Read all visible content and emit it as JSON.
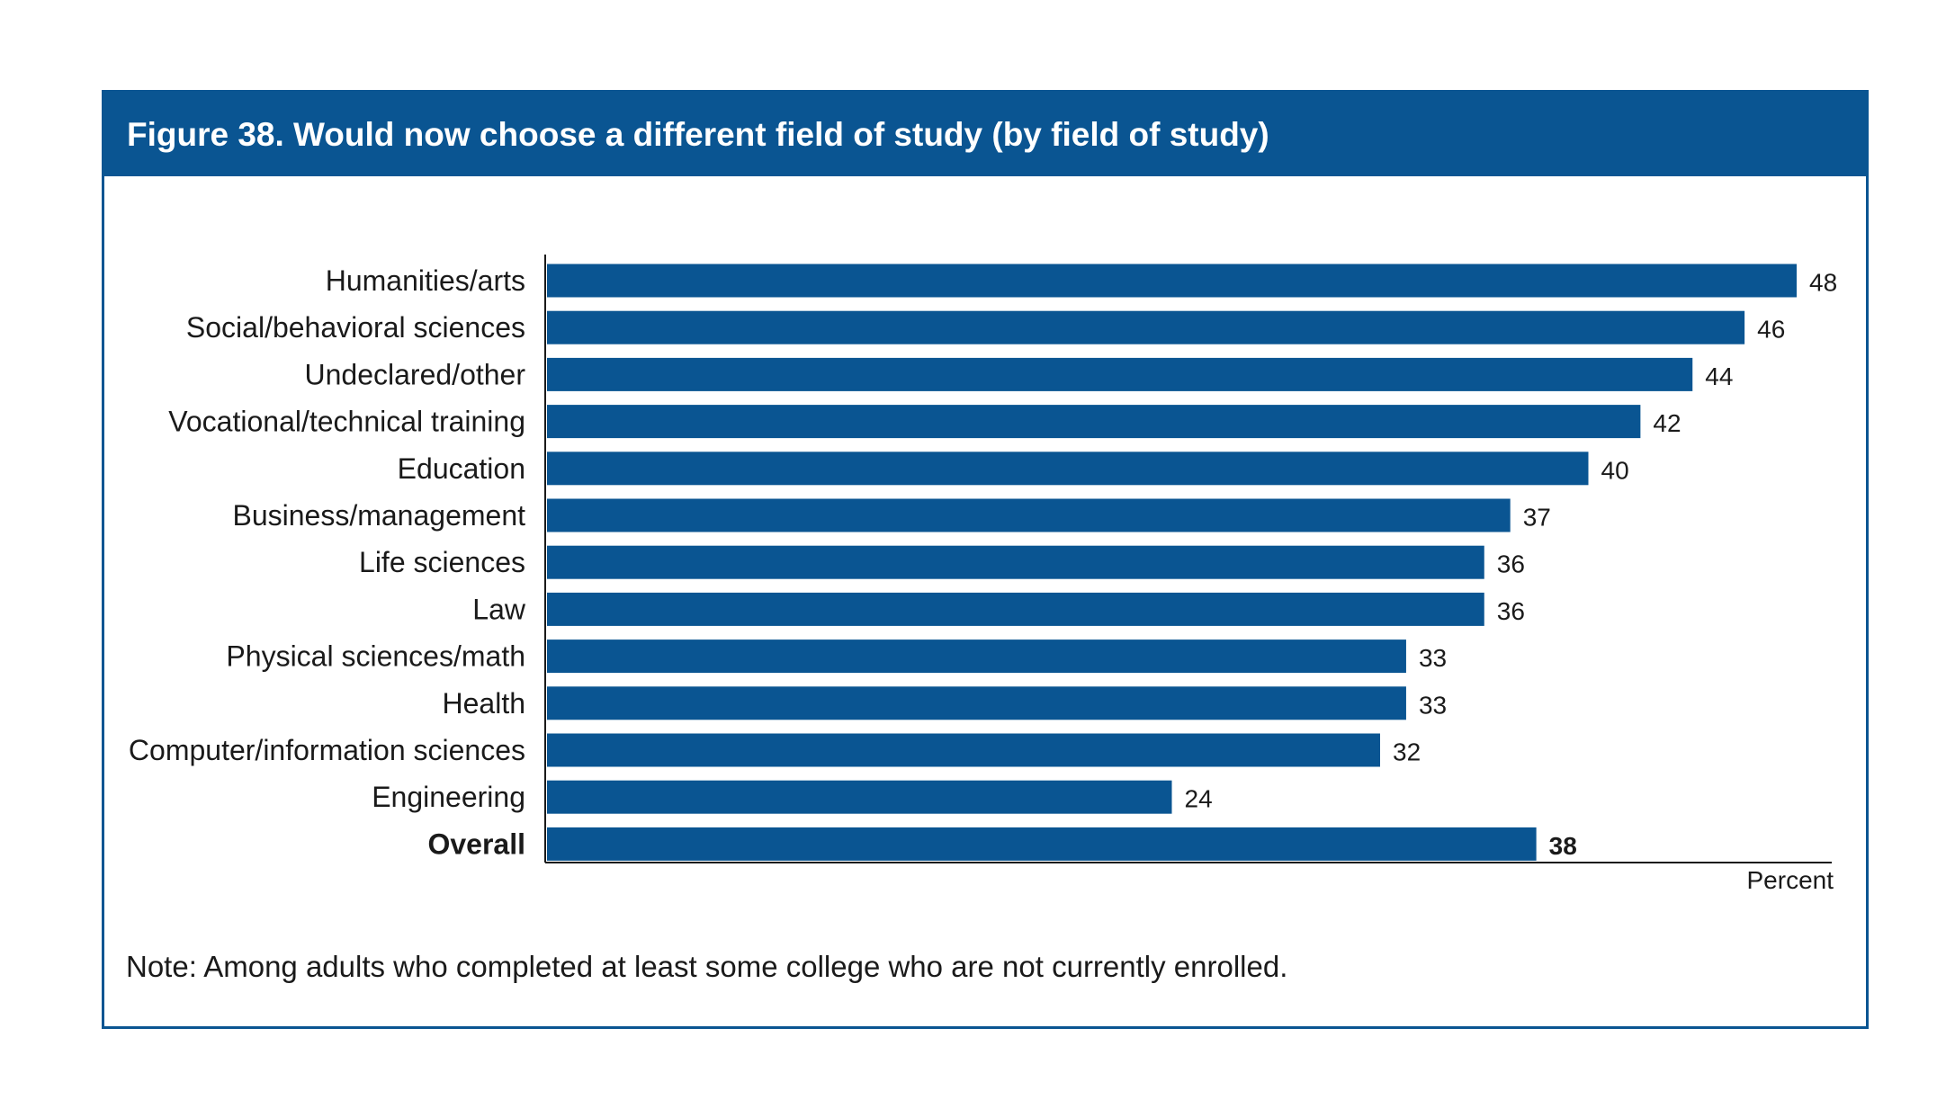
{
  "figure": {
    "title": "Figure 38. Would now choose a different field of study (by field of study)",
    "note": "Note: Among adults who completed at least some college who are not currently enrolled.",
    "axis_unit": "Percent"
  },
  "colors": {
    "brand": "#0a5592",
    "bar": "#0a5592",
    "text": "#1a1a1a"
  },
  "chart_data": {
    "type": "bar",
    "orientation": "horizontal",
    "categories": [
      "Humanities/arts",
      "Social/behavioral sciences",
      "Undeclared/other",
      "Vocational/technical training",
      "Education",
      "Business/management",
      "Life sciences",
      "Law",
      "Physical sciences/math",
      "Health",
      "Computer/information sciences",
      "Engineering",
      "Overall"
    ],
    "values": [
      48,
      46,
      44,
      42,
      40,
      37,
      36,
      36,
      33,
      33,
      32,
      24,
      38
    ],
    "data_labels": [
      "48",
      "46",
      "44",
      "42",
      "40",
      "37",
      "36",
      "36",
      "33",
      "33",
      "32",
      "24",
      "38"
    ],
    "bold_categories": [
      "Overall"
    ],
    "title": "Figure 38. Would now choose a different field of study (by field of study)",
    "xlabel": "Percent",
    "ylabel": "",
    "xlim": [
      0,
      50
    ],
    "grid": false,
    "legend": "none"
  }
}
